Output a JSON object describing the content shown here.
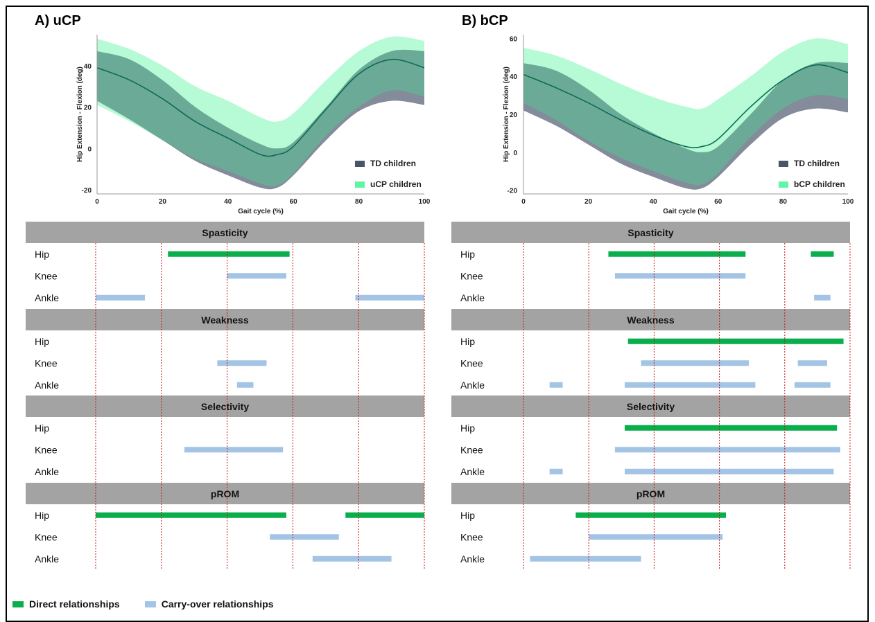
{
  "colors": {
    "td": "#4a5568",
    "td_band": "#5b6478",
    "cp_light": "#5ef5a5",
    "mean_line": "#0d6b55",
    "direct": "#0aae4c",
    "carry": "#a3c4e4",
    "header_bg": "#a3a3a3",
    "gridline": "#cc1111"
  },
  "bottom_legend": {
    "direct": "Direct relationships",
    "carry": "Carry-over relationships"
  },
  "chart_data": [
    {
      "type": "area",
      "title": "A) uCP",
      "xlabel": "Gait cycle (%)",
      "ylabel": "Hip Extension - Flexion (deg)",
      "xlim": [
        0,
        100
      ],
      "ylim": [
        -22,
        55
      ],
      "xticks": [
        0,
        20,
        40,
        60,
        80,
        100
      ],
      "yticks": [
        -20,
        0,
        20,
        40
      ],
      "legend_position": "bottom-right",
      "series": [
        {
          "name": "TD children",
          "role": "td",
          "x": [
            0,
            10,
            20,
            30,
            40,
            50,
            55,
            60,
            70,
            80,
            90,
            100
          ],
          "upper": [
            47,
            43,
            33,
            20,
            10,
            2,
            0,
            3,
            20,
            38,
            47,
            47
          ],
          "lower": [
            23,
            14,
            4,
            -6,
            -13,
            -19,
            -19,
            -13,
            4,
            18,
            23,
            21
          ]
        },
        {
          "name": "uCP children",
          "role": "cp",
          "x": [
            0,
            10,
            20,
            30,
            40,
            50,
            55,
            60,
            70,
            80,
            90,
            100
          ],
          "upper": [
            53,
            48,
            40,
            30,
            23,
            15,
            13,
            17,
            33,
            47,
            54,
            52
          ],
          "lower": [
            21,
            13,
            4,
            -5,
            -11,
            -17,
            -18,
            -12,
            6,
            20,
            28,
            25
          ],
          "mean": [
            39,
            33,
            24,
            13,
            5,
            -3,
            -3,
            1,
            19,
            36,
            43,
            39
          ]
        }
      ]
    },
    {
      "type": "area",
      "title": "B) bCP",
      "xlabel": "Gait cycle (%)",
      "ylabel": "Hip Extension - Flexion (deg)",
      "xlim": [
        0,
        100
      ],
      "ylim": [
        -22,
        62
      ],
      "xticks": [
        0,
        20,
        40,
        60,
        80,
        100
      ],
      "yticks": [
        -20,
        0,
        20,
        40,
        60
      ],
      "legend_position": "bottom-right",
      "series": [
        {
          "name": "TD children",
          "role": "td",
          "x": [
            0,
            10,
            20,
            30,
            40,
            50,
            55,
            60,
            70,
            80,
            90,
            100
          ],
          "upper": [
            47,
            43,
            33,
            20,
            10,
            2,
            0,
            3,
            20,
            38,
            47,
            47
          ],
          "lower": [
            22,
            14,
            4,
            -6,
            -13,
            -19,
            -19,
            -13,
            4,
            18,
            23,
            21
          ]
        },
        {
          "name": "bCP children",
          "role": "cp",
          "x": [
            0,
            10,
            20,
            30,
            40,
            50,
            55,
            60,
            70,
            80,
            90,
            100
          ],
          "upper": [
            55,
            51,
            44,
            36,
            29,
            24,
            23,
            28,
            40,
            53,
            60,
            57
          ],
          "lower": [
            26,
            17,
            6,
            -3,
            -10,
            -16,
            -17,
            -11,
            8,
            23,
            30,
            28
          ],
          "mean": [
            41,
            34,
            26,
            17,
            9,
            3,
            3,
            7,
            24,
            38,
            46,
            42
          ]
        }
      ]
    },
    {
      "type": "gantt",
      "panel": "uCP",
      "xlim": [
        0,
        100
      ],
      "gridlines": [
        0,
        20,
        40,
        60,
        80,
        100
      ],
      "groups": [
        {
          "name": "Spasticity",
          "rows": [
            {
              "label": "Hip",
              "bars": [
                {
                  "start": 22,
                  "end": 59,
                  "kind": "direct"
                }
              ]
            },
            {
              "label": "Knee",
              "bars": [
                {
                  "start": 40,
                  "end": 58,
                  "kind": "carry"
                }
              ]
            },
            {
              "label": "Ankle",
              "bars": [
                {
                  "start": 0,
                  "end": 15,
                  "kind": "carry"
                },
                {
                  "start": 79,
                  "end": 100,
                  "kind": "carry"
                }
              ]
            }
          ]
        },
        {
          "name": "Weakness",
          "rows": [
            {
              "label": "Hip",
              "bars": []
            },
            {
              "label": "Knee",
              "bars": [
                {
                  "start": 37,
                  "end": 52,
                  "kind": "carry"
                }
              ]
            },
            {
              "label": "Ankle",
              "bars": [
                {
                  "start": 43,
                  "end": 48,
                  "kind": "carry"
                }
              ]
            }
          ]
        },
        {
          "name": "Selectivity",
          "rows": [
            {
              "label": "Hip",
              "bars": []
            },
            {
              "label": "Knee",
              "bars": [
                {
                  "start": 27,
                  "end": 57,
                  "kind": "carry"
                }
              ]
            },
            {
              "label": "Ankle",
              "bars": []
            }
          ]
        },
        {
          "name": "pROM",
          "rows": [
            {
              "label": "Hip",
              "bars": [
                {
                  "start": 0,
                  "end": 58,
                  "kind": "direct"
                },
                {
                  "start": 76,
                  "end": 100,
                  "kind": "direct"
                }
              ]
            },
            {
              "label": "Knee",
              "bars": [
                {
                  "start": 53,
                  "end": 74,
                  "kind": "carry"
                }
              ]
            },
            {
              "label": "Ankle",
              "bars": [
                {
                  "start": 66,
                  "end": 90,
                  "kind": "carry"
                }
              ]
            }
          ]
        }
      ]
    },
    {
      "type": "gantt",
      "panel": "bCP",
      "xlim": [
        0,
        100
      ],
      "gridlines": [
        0,
        20,
        40,
        60,
        80,
        100
      ],
      "groups": [
        {
          "name": "Spasticity",
          "rows": [
            {
              "label": "Hip",
              "bars": [
                {
                  "start": 26,
                  "end": 68,
                  "kind": "direct"
                },
                {
                  "start": 88,
                  "end": 95,
                  "kind": "direct"
                }
              ]
            },
            {
              "label": "Knee",
              "bars": [
                {
                  "start": 28,
                  "end": 68,
                  "kind": "carry"
                }
              ]
            },
            {
              "label": "Ankle",
              "bars": [
                {
                  "start": 89,
                  "end": 94,
                  "kind": "carry"
                }
              ]
            }
          ]
        },
        {
          "name": "Weakness",
          "rows": [
            {
              "label": "Hip",
              "bars": [
                {
                  "start": 32,
                  "end": 98,
                  "kind": "direct"
                }
              ]
            },
            {
              "label": "Knee",
              "bars": [
                {
                  "start": 36,
                  "end": 69,
                  "kind": "carry"
                },
                {
                  "start": 84,
                  "end": 93,
                  "kind": "carry"
                }
              ]
            },
            {
              "label": "Ankle",
              "bars": [
                {
                  "start": 8,
                  "end": 12,
                  "kind": "carry"
                },
                {
                  "start": 31,
                  "end": 71,
                  "kind": "carry"
                },
                {
                  "start": 83,
                  "end": 94,
                  "kind": "carry"
                }
              ]
            }
          ]
        },
        {
          "name": "Selectivity",
          "rows": [
            {
              "label": "Hip",
              "bars": [
                {
                  "start": 31,
                  "end": 96,
                  "kind": "direct"
                }
              ]
            },
            {
              "label": "Knee",
              "bars": [
                {
                  "start": 28,
                  "end": 97,
                  "kind": "carry"
                }
              ]
            },
            {
              "label": "Ankle",
              "bars": [
                {
                  "start": 8,
                  "end": 12,
                  "kind": "carry"
                },
                {
                  "start": 31,
                  "end": 95,
                  "kind": "carry"
                }
              ]
            }
          ]
        },
        {
          "name": "pROM",
          "rows": [
            {
              "label": "Hip",
              "bars": [
                {
                  "start": 16,
                  "end": 62,
                  "kind": "direct"
                }
              ]
            },
            {
              "label": "Knee",
              "bars": [
                {
                  "start": 20,
                  "end": 61,
                  "kind": "carry"
                }
              ]
            },
            {
              "label": "Ankle",
              "bars": [
                {
                  "start": 2,
                  "end": 36,
                  "kind": "carry"
                }
              ]
            }
          ]
        }
      ]
    }
  ]
}
